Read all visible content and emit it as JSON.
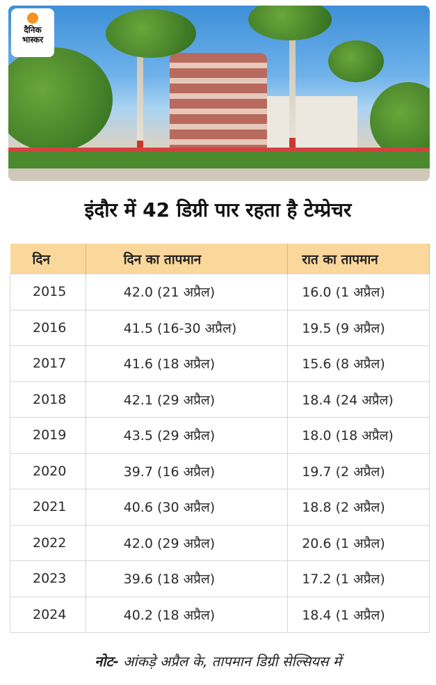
{
  "logo": {
    "line1": "दैनिक",
    "line2": "भास्कर"
  },
  "title": "इंदौर में 42 डिग्री पार रहता है टेम्प्रेचर",
  "table": {
    "headers": [
      "दिन",
      "दिन का तापमान",
      "रात का तापमान"
    ],
    "rows": [
      [
        "2015",
        "42.0 (21 अप्रैल)",
        "16.0 (1 अप्रैल)"
      ],
      [
        "2016",
        "41.5 (16-30 अप्रैल)",
        "19.5 (9 अप्रैल)"
      ],
      [
        "2017",
        "41.6 (18 अप्रैल)",
        "15.6 (8 अप्रैल)"
      ],
      [
        "2018",
        "42.1 (29 अप्रैल)",
        "18.4 (24 अप्रैल)"
      ],
      [
        "2019",
        "43.5 (29 अप्रैल)",
        "18.0 (18 अप्रैल)"
      ],
      [
        "2020",
        "39.7 (16 अप्रैल)",
        "19.7 (2 अप्रैल)"
      ],
      [
        "2021",
        "40.6 (30 अप्रैल)",
        "18.8 (2 अप्रैल)"
      ],
      [
        "2022",
        "42.0 (29 अप्रैल)",
        "20.6 (1 अप्रैल)"
      ],
      [
        "2023",
        "39.6 (18 अप्रैल)",
        "17.2 (1 अप्रैल)"
      ],
      [
        "2024",
        "40.2  (18 अप्रैल)",
        "18.4 (1 अप्रैल)"
      ]
    ]
  },
  "note": {
    "label": "नोट-",
    "text": " आंकड़े अप्रैल के, तापमान डिग्री सेल्सियस में"
  },
  "colors": {
    "header_bg": "#fad79a",
    "logo_sun": "#f7921e"
  }
}
